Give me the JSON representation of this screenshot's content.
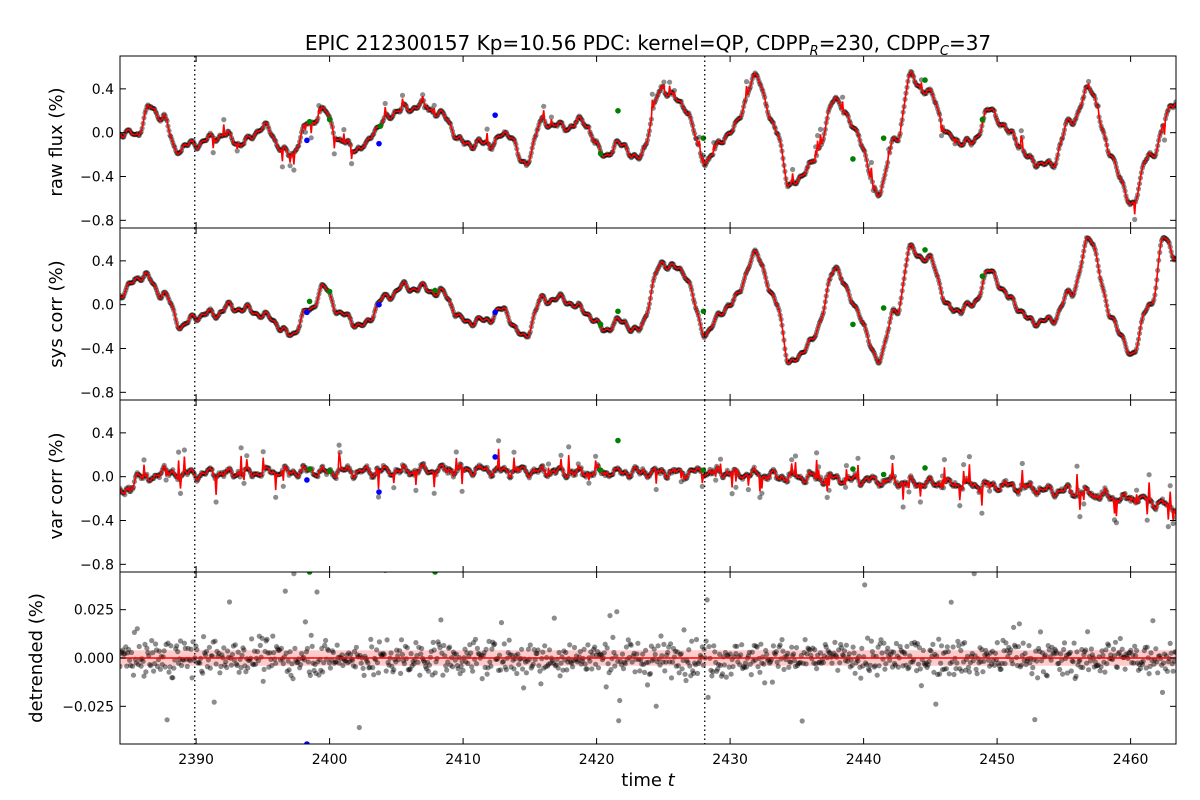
{
  "title": {
    "prefix": "EPIC 212300157 Kp=10.56 PDC: kernel=QP, CDPP",
    "sub_r": "R",
    "mid": "=230, CDPP",
    "sub_c": "C",
    "suffix": "=37"
  },
  "xlabel": {
    "text": "time ",
    "var": "t"
  },
  "chart_data": {
    "type": "scatter",
    "x_range": [
      2384.3,
      2463.4
    ],
    "x_ticks": [
      2390,
      2400,
      2410,
      2420,
      2430,
      2440,
      2450,
      2460
    ],
    "x_tick_labels": [
      "2390",
      "2400",
      "2410",
      "2420",
      "2430",
      "2440",
      "2450",
      "2460"
    ],
    "vlines": [
      2389.9,
      2428.1
    ],
    "colors": {
      "points": "#000000",
      "model": "#ff0000",
      "outlier_green": "#008000",
      "outlier_blue": "#0000ff",
      "band": "#ffb3b3"
    },
    "panels": [
      {
        "ylabel": "raw flux (%)",
        "ylim": [
          -0.87,
          0.7
        ],
        "y_ticks": [
          0.4,
          0.0,
          -0.4,
          -0.8
        ],
        "y_tick_labels": [
          "0.4",
          "0.0",
          "−0.4",
          "−0.8"
        ],
        "curve_control": [
          [
            2384.3,
            0.0
          ],
          [
            2385.5,
            -0.02
          ],
          [
            2386.5,
            0.22
          ],
          [
            2387.5,
            0.15
          ],
          [
            2388.5,
            -0.15
          ],
          [
            2390,
            -0.1
          ],
          [
            2392,
            -0.02
          ],
          [
            2393.5,
            -0.1
          ],
          [
            2395,
            0.05
          ],
          [
            2397,
            -0.2
          ],
          [
            2398.5,
            0.08
          ],
          [
            2399.5,
            0.2
          ],
          [
            2401,
            -0.1
          ],
          [
            2402.5,
            -0.15
          ],
          [
            2403.5,
            0.05
          ],
          [
            2405,
            0.2
          ],
          [
            2407,
            0.25
          ],
          [
            2408.5,
            0.15
          ],
          [
            2410,
            -0.1
          ],
          [
            2412,
            -0.1
          ],
          [
            2413.5,
            0.0
          ],
          [
            2414.5,
            -0.3
          ],
          [
            2416,
            0.1
          ],
          [
            2417.5,
            0.05
          ],
          [
            2419,
            0.1
          ],
          [
            2420.5,
            -0.2
          ],
          [
            2422,
            -0.1
          ],
          [
            2423,
            -0.25
          ],
          [
            2425,
            0.4
          ],
          [
            2426.5,
            0.25
          ],
          [
            2428.1,
            -0.25
          ],
          [
            2430,
            0.0
          ],
          [
            2432,
            0.5
          ],
          [
            2433.5,
            0.0
          ],
          [
            2434.5,
            -0.5
          ],
          [
            2436,
            -0.3
          ],
          [
            2438,
            0.3
          ],
          [
            2439.5,
            0.0
          ],
          [
            2441,
            -0.55
          ],
          [
            2442.5,
            -0.05
          ],
          [
            2443.5,
            0.5
          ],
          [
            2445,
            0.35
          ],
          [
            2446.5,
            -0.05
          ],
          [
            2448,
            -0.1
          ],
          [
            2449.5,
            0.2
          ],
          [
            2451,
            0.0
          ],
          [
            2452.5,
            -0.25
          ],
          [
            2454,
            -0.3
          ],
          [
            2455.5,
            0.1
          ],
          [
            2457,
            0.4
          ],
          [
            2458.5,
            -0.2
          ],
          [
            2460,
            -0.65
          ],
          [
            2461.5,
            -0.2
          ],
          [
            2463.4,
            0.3
          ]
        ],
        "amp_noise": 0.02,
        "spike_prob": 0.05,
        "spike_amp": 0.12,
        "outliers": [
          {
            "x": 2398.3,
            "y": -0.07,
            "c": "b"
          },
          {
            "x": 2398.5,
            "y": 0.1,
            "c": "g"
          },
          {
            "x": 2400.0,
            "y": 0.12,
            "c": "g"
          },
          {
            "x": 2403.7,
            "y": -0.1,
            "c": "b"
          },
          {
            "x": 2403.8,
            "y": 0.06,
            "c": "g"
          },
          {
            "x": 2412.4,
            "y": 0.16,
            "c": "b"
          },
          {
            "x": 2420.3,
            "y": -0.19,
            "c": "g"
          },
          {
            "x": 2421.6,
            "y": 0.2,
            "c": "g"
          },
          {
            "x": 2428.0,
            "y": -0.05,
            "c": "g"
          },
          {
            "x": 2439.2,
            "y": -0.24,
            "c": "g"
          },
          {
            "x": 2441.5,
            "y": -0.05,
            "c": "g"
          },
          {
            "x": 2444.6,
            "y": 0.48,
            "c": "g"
          },
          {
            "x": 2448.9,
            "y": 0.12,
            "c": "g"
          }
        ]
      },
      {
        "ylabel": "sys corr (%)",
        "ylim": [
          -0.87,
          0.7
        ],
        "y_ticks": [
          0.4,
          0.0,
          -0.4,
          -0.8
        ],
        "y_tick_labels": [
          "0.4",
          "0.0",
          "−0.4",
          "−0.8"
        ],
        "curve_control": [
          [
            2384.3,
            0.1
          ],
          [
            2386,
            0.27
          ],
          [
            2387.5,
            0.1
          ],
          [
            2389,
            -0.2
          ],
          [
            2390,
            -0.1
          ],
          [
            2391.5,
            -0.08
          ],
          [
            2392.5,
            -0.02
          ],
          [
            2394,
            -0.05
          ],
          [
            2395.5,
            -0.12
          ],
          [
            2397,
            -0.28
          ],
          [
            2398.5,
            -0.05
          ],
          [
            2399.5,
            0.15
          ],
          [
            2401,
            -0.1
          ],
          [
            2402.5,
            -0.2
          ],
          [
            2404,
            0.05
          ],
          [
            2405.5,
            0.16
          ],
          [
            2407,
            0.15
          ],
          [
            2408.5,
            0.1
          ],
          [
            2410,
            -0.15
          ],
          [
            2411.5,
            -0.15
          ],
          [
            2413,
            -0.05
          ],
          [
            2414.5,
            -0.3
          ],
          [
            2416,
            0.05
          ],
          [
            2417.5,
            0.05
          ],
          [
            2419,
            -0.05
          ],
          [
            2420.5,
            -0.22
          ],
          [
            2422,
            -0.15
          ],
          [
            2423,
            -0.25
          ],
          [
            2425,
            0.38
          ],
          [
            2426.5,
            0.3
          ],
          [
            2428.1,
            -0.25
          ],
          [
            2430,
            0.0
          ],
          [
            2432,
            0.45
          ],
          [
            2433.5,
            0.0
          ],
          [
            2434.5,
            -0.55
          ],
          [
            2436,
            -0.35
          ],
          [
            2438,
            0.32
          ],
          [
            2439.5,
            -0.05
          ],
          [
            2441,
            -0.5
          ],
          [
            2442.5,
            -0.05
          ],
          [
            2443.5,
            0.5
          ],
          [
            2445,
            0.4
          ],
          [
            2446.5,
            -0.05
          ],
          [
            2448,
            -0.02
          ],
          [
            2449.5,
            0.3
          ],
          [
            2451,
            0.05
          ],
          [
            2452.5,
            -0.15
          ],
          [
            2454,
            -0.15
          ],
          [
            2455.5,
            0.1
          ],
          [
            2457,
            0.6
          ],
          [
            2458.5,
            -0.1
          ],
          [
            2460,
            -0.45
          ],
          [
            2461.5,
            0.0
          ],
          [
            2462.5,
            0.6
          ],
          [
            2463.4,
            0.45
          ]
        ],
        "amp_noise": 0.012,
        "spike_prob": 0.0,
        "spike_amp": 0.0,
        "outliers": [
          {
            "x": 2398.3,
            "y": -0.07,
            "c": "b"
          },
          {
            "x": 2398.5,
            "y": 0.03,
            "c": "g"
          },
          {
            "x": 2400.0,
            "y": 0.12,
            "c": "g"
          },
          {
            "x": 2403.7,
            "y": 0.0,
            "c": "b"
          },
          {
            "x": 2407.9,
            "y": 0.13,
            "c": "g"
          },
          {
            "x": 2412.4,
            "y": -0.07,
            "c": "b"
          },
          {
            "x": 2420.3,
            "y": -0.18,
            "c": "g"
          },
          {
            "x": 2421.6,
            "y": -0.06,
            "c": "g"
          },
          {
            "x": 2428.0,
            "y": -0.06,
            "c": "g"
          },
          {
            "x": 2439.2,
            "y": -0.18,
            "c": "g"
          },
          {
            "x": 2441.5,
            "y": -0.03,
            "c": "g"
          },
          {
            "x": 2444.6,
            "y": 0.5,
            "c": "g"
          },
          {
            "x": 2448.9,
            "y": 0.26,
            "c": "g"
          }
        ]
      },
      {
        "ylabel": "var corr (%)",
        "ylim": [
          -0.87,
          0.7
        ],
        "y_ticks": [
          0.4,
          0.0,
          -0.4,
          -0.8
        ],
        "y_tick_labels": [
          "0.4",
          "0.0",
          "−0.4",
          "−0.8"
        ],
        "curve_control": [
          [
            2384.3,
            -0.1
          ],
          [
            2385,
            -0.15
          ],
          [
            2385.8,
            0.05
          ],
          [
            2386.5,
            -0.05
          ],
          [
            2387.5,
            0.08
          ],
          [
            2388,
            0.02
          ],
          [
            2390,
            0.03
          ],
          [
            2400,
            0.05
          ],
          [
            2410,
            0.06
          ],
          [
            2420,
            0.04
          ],
          [
            2428,
            0.04
          ],
          [
            2435,
            0.0
          ],
          [
            2440,
            -0.03
          ],
          [
            2445,
            -0.06
          ],
          [
            2450,
            -0.08
          ],
          [
            2455,
            -0.13
          ],
          [
            2460,
            -0.2
          ],
          [
            2463.4,
            -0.27
          ]
        ],
        "amp_noise": 0.04,
        "spike_prob": 0.06,
        "spike_amp": 0.18,
        "outliers": [
          {
            "x": 2398.3,
            "y": -0.03,
            "c": "b"
          },
          {
            "x": 2398.5,
            "y": 0.07,
            "c": "g"
          },
          {
            "x": 2400.0,
            "y": 0.05,
            "c": "g"
          },
          {
            "x": 2403.7,
            "y": -0.14,
            "c": "b"
          },
          {
            "x": 2412.4,
            "y": 0.18,
            "c": "b"
          },
          {
            "x": 2420.3,
            "y": 0.06,
            "c": "g"
          },
          {
            "x": 2421.6,
            "y": 0.33,
            "c": "g"
          },
          {
            "x": 2428.0,
            "y": 0.06,
            "c": "g"
          },
          {
            "x": 2439.2,
            "y": 0.07,
            "c": "g"
          },
          {
            "x": 2441.5,
            "y": 0.02,
            "c": "g"
          },
          {
            "x": 2444.6,
            "y": 0.08,
            "c": "g"
          }
        ]
      },
      {
        "ylabel": "detrended (%)",
        "ylim": [
          -0.0445,
          0.0445
        ],
        "y_ticks": [
          0.025,
          0.0,
          -0.025
        ],
        "y_tick_labels": [
          "0.025",
          "0.000",
          "−0.025"
        ],
        "curve_control": [
          [
            2384.3,
            0.0
          ],
          [
            2463.4,
            0.0
          ]
        ],
        "amp_noise": 0.008,
        "spike_prob": 0.03,
        "spike_amp": 0.03,
        "band": 0.004,
        "outliers": [
          {
            "x": 2398.3,
            "y": -0.0445,
            "c": "b"
          },
          {
            "x": 2398.5,
            "y": 0.0445,
            "c": "g"
          },
          {
            "x": 2407.9,
            "y": 0.0445,
            "c": "g"
          }
        ]
      }
    ]
  }
}
